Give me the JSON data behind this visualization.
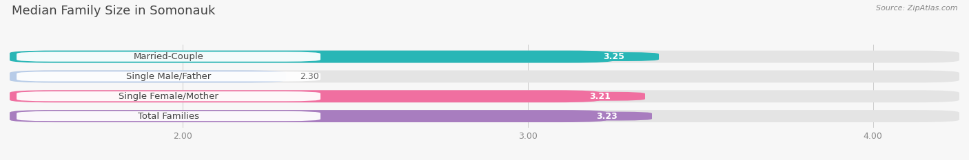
{
  "title": "Median Family Size in Somonauk",
  "source": "Source: ZipAtlas.com",
  "categories": [
    "Married-Couple",
    "Single Male/Father",
    "Single Female/Mother",
    "Total Families"
  ],
  "values": [
    3.25,
    2.3,
    3.21,
    3.23
  ],
  "bar_colors": [
    "#29b6b6",
    "#b8cce8",
    "#f06fa0",
    "#a87dbf"
  ],
  "background_color": "#f7f7f7",
  "bar_bg_color": "#e4e4e4",
  "xlim_min": 1.5,
  "xlim_max": 4.25,
  "xticks": [
    2.0,
    3.0,
    4.0
  ],
  "bar_height": 0.62,
  "title_fontsize": 13,
  "label_fontsize": 9.5,
  "value_fontsize": 9,
  "tick_fontsize": 9
}
